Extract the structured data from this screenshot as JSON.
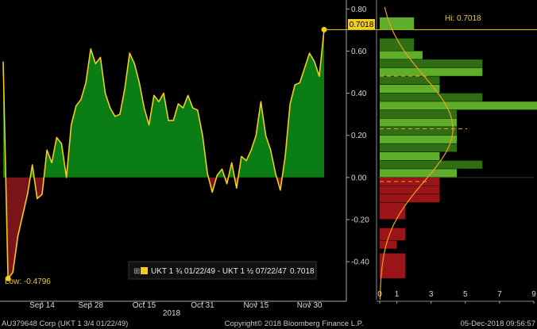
{
  "colors": {
    "background": "#000000",
    "positive_fill": "#0a7d14",
    "negative_fill": "#7a1418",
    "line": "#f2cd1b",
    "hist_green_light": "#5fae2a",
    "hist_green_dark": "#2f6e12",
    "hist_red": "#9a1418",
    "axis_text": "#d8d8d8",
    "grid": "#5a5a5a"
  },
  "chart_data": [
    {
      "type": "area",
      "series": [
        {
          "name": "UKT 1 ¾ 01/22/49 - UKT 1 ½ 07/22/47",
          "x": [
            "2018-09-04",
            "2018-09-05",
            "2018-09-06",
            "2018-09-07",
            "2018-09-10",
            "2018-09-11",
            "2018-09-12",
            "2018-09-13",
            "2018-09-14",
            "2018-09-17",
            "2018-09-18",
            "2018-09-19",
            "2018-09-20",
            "2018-09-21",
            "2018-09-24",
            "2018-09-25",
            "2018-09-26",
            "2018-09-27",
            "2018-09-28",
            "2018-10-01",
            "2018-10-02",
            "2018-10-03",
            "2018-10-04",
            "2018-10-05",
            "2018-10-08",
            "2018-10-09",
            "2018-10-10",
            "2018-10-11",
            "2018-10-12",
            "2018-10-15",
            "2018-10-16",
            "2018-10-17",
            "2018-10-18",
            "2018-10-19",
            "2018-10-22",
            "2018-10-23",
            "2018-10-24",
            "2018-10-25",
            "2018-10-26",
            "2018-10-29",
            "2018-10-30",
            "2018-10-31",
            "2018-11-01",
            "2018-11-02",
            "2018-11-05",
            "2018-11-06",
            "2018-11-07",
            "2018-11-08",
            "2018-11-09",
            "2018-11-12",
            "2018-11-13",
            "2018-11-14",
            "2018-11-15",
            "2018-11-16",
            "2018-11-19",
            "2018-11-20",
            "2018-11-21",
            "2018-11-22",
            "2018-11-23",
            "2018-11-26",
            "2018-11-27",
            "2018-11-28",
            "2018-11-29",
            "2018-11-30",
            "2018-12-03",
            "2018-12-04",
            "2018-12-05"
          ],
          "values": [
            0.55,
            -0.4796,
            -0.45,
            -0.28,
            -0.18,
            -0.08,
            0.06,
            -0.1,
            -0.08,
            0.13,
            0.07,
            0.19,
            0.16,
            0.0,
            0.25,
            0.34,
            0.37,
            0.45,
            0.61,
            0.54,
            0.57,
            0.4,
            0.33,
            0.29,
            0.3,
            0.42,
            0.59,
            0.54,
            0.45,
            0.33,
            0.25,
            0.39,
            0.36,
            0.4,
            0.27,
            0.27,
            0.35,
            0.33,
            0.39,
            0.33,
            0.32,
            0.2,
            0.02,
            -0.07,
            0.01,
            0.04,
            -0.03,
            0.07,
            -0.05,
            0.1,
            0.08,
            0.13,
            0.2,
            0.36,
            0.2,
            0.13,
            0.02,
            -0.06,
            0.1,
            0.35,
            0.44,
            0.45,
            0.52,
            0.59,
            0.55,
            0.48,
            0.7018
          ]
        }
      ],
      "x_tick_labels": [
        "Sep 14",
        "Sep 28",
        "Oct 15",
        "Oct 31",
        "Nov 15",
        "Nov 30"
      ],
      "year_label": "2018",
      "y_tick_labels": [
        "0.80",
        "0.60",
        "0.40",
        "0.20",
        "0.00",
        "-0.20",
        "-0.40"
      ],
      "ylim": [
        -0.58,
        0.82
      ],
      "legend": "UKT 1 ¾ 01/22/49 - UKT 1 ½ 07/22/47",
      "legend_value": "0.7018",
      "last_value": "0.7018",
      "annotations": {
        "high": "Hi: 0.7018",
        "low": "Low: -0.4796"
      }
    },
    {
      "type": "bar",
      "orientation": "horizontal",
      "description_axis": "frequency histogram of values with normal fit curve",
      "bins": [
        {
          "lo": 0.7,
          "hi": 0.76,
          "count": 2
        },
        {
          "lo": 0.6,
          "hi": 0.66,
          "count": 2
        },
        {
          "lo": 0.56,
          "hi": 0.6,
          "count": 2.5
        },
        {
          "lo": 0.52,
          "hi": 0.56,
          "count": 6
        },
        {
          "lo": 0.48,
          "hi": 0.52,
          "count": 6
        },
        {
          "lo": 0.44,
          "hi": 0.48,
          "count": 3.5
        },
        {
          "lo": 0.4,
          "hi": 0.44,
          "count": 3.5
        },
        {
          "lo": 0.36,
          "hi": 0.4,
          "count": 6
        },
        {
          "lo": 0.32,
          "hi": 0.36,
          "count": 9.5
        },
        {
          "lo": 0.28,
          "hi": 0.32,
          "count": 4.5
        },
        {
          "lo": 0.24,
          "hi": 0.28,
          "count": 4.5
        },
        {
          "lo": 0.2,
          "hi": 0.24,
          "count": 4.5
        },
        {
          "lo": 0.16,
          "hi": 0.2,
          "count": 4.5
        },
        {
          "lo": 0.12,
          "hi": 0.16,
          "count": 4.5
        },
        {
          "lo": 0.08,
          "hi": 0.12,
          "count": 3.5
        },
        {
          "lo": 0.04,
          "hi": 0.08,
          "count": 6
        },
        {
          "lo": 0.0,
          "hi": 0.04,
          "count": 4.5
        },
        {
          "lo": -0.04,
          "hi": 0.0,
          "count": 3.5
        },
        {
          "lo": -0.08,
          "hi": -0.04,
          "count": 3.5
        },
        {
          "lo": -0.12,
          "hi": -0.08,
          "count": 3.5
        },
        {
          "lo": -0.2,
          "hi": -0.12,
          "count": 1.5
        },
        {
          "lo": -0.3,
          "hi": -0.24,
          "count": 1.5
        },
        {
          "lo": -0.34,
          "hi": -0.3,
          "count": 1
        },
        {
          "lo": -0.48,
          "hi": -0.36,
          "count": 1.5
        }
      ],
      "x_tick_labels": [
        "0",
        "1",
        "3",
        "5",
        "7",
        "9"
      ],
      "xlim": [
        0,
        9
      ]
    }
  ],
  "footer": {
    "left": "AU379648 Corp (UKT 1 3/4 01/22/49)",
    "center": "Copyright© 2018 Bloomberg Finance L.P.",
    "right": "05-Dec-2018 09:56:57"
  }
}
